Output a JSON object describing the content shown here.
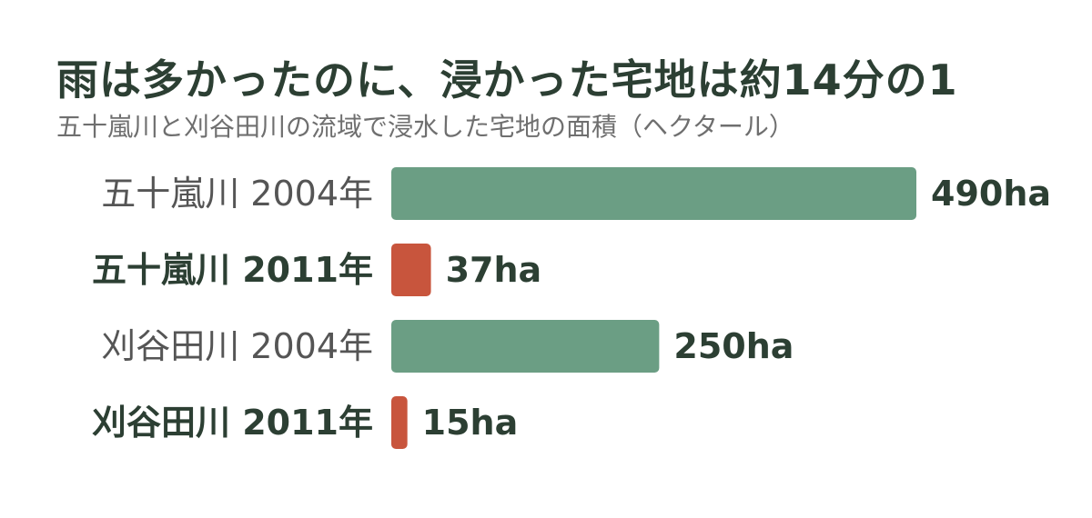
{
  "header": {
    "title": "雨は多かったのに、浸かった宅地は約14分の1",
    "subtitle": "五十嵐川と刈谷田川の流域で浸水した宅地の面積（ヘクタール）"
  },
  "colors": {
    "year_2004": "#6b9e84",
    "year_2011": "#c8553d",
    "text_dark": "#2c3f33",
    "text_muted": "#555555"
  },
  "chart_data": {
    "type": "bar",
    "orientation": "horizontal",
    "title": "雨は多かったのに、浸かった宅地は約14分の1",
    "subtitle": "五十嵐川と刈谷田川の流域で浸水した宅地の面積（ヘクタール）",
    "xlabel": "",
    "ylabel": "",
    "xlim": [
      0,
      490
    ],
    "grid": false,
    "legend": "none",
    "bars": [
      {
        "category": "五十嵐川 2004年",
        "value": 490,
        "label": "490ha",
        "year": "2004",
        "emphasis": false
      },
      {
        "category": "五十嵐川 2011年",
        "value": 37,
        "label": "37ha",
        "year": "2011",
        "emphasis": true
      },
      {
        "category": "刈谷田川 2004年",
        "value": 250,
        "label": "250ha",
        "year": "2004",
        "emphasis": false
      },
      {
        "category": "刈谷田川 2011年",
        "value": 15,
        "label": "15ha",
        "year": "2011",
        "emphasis": true
      }
    ]
  }
}
